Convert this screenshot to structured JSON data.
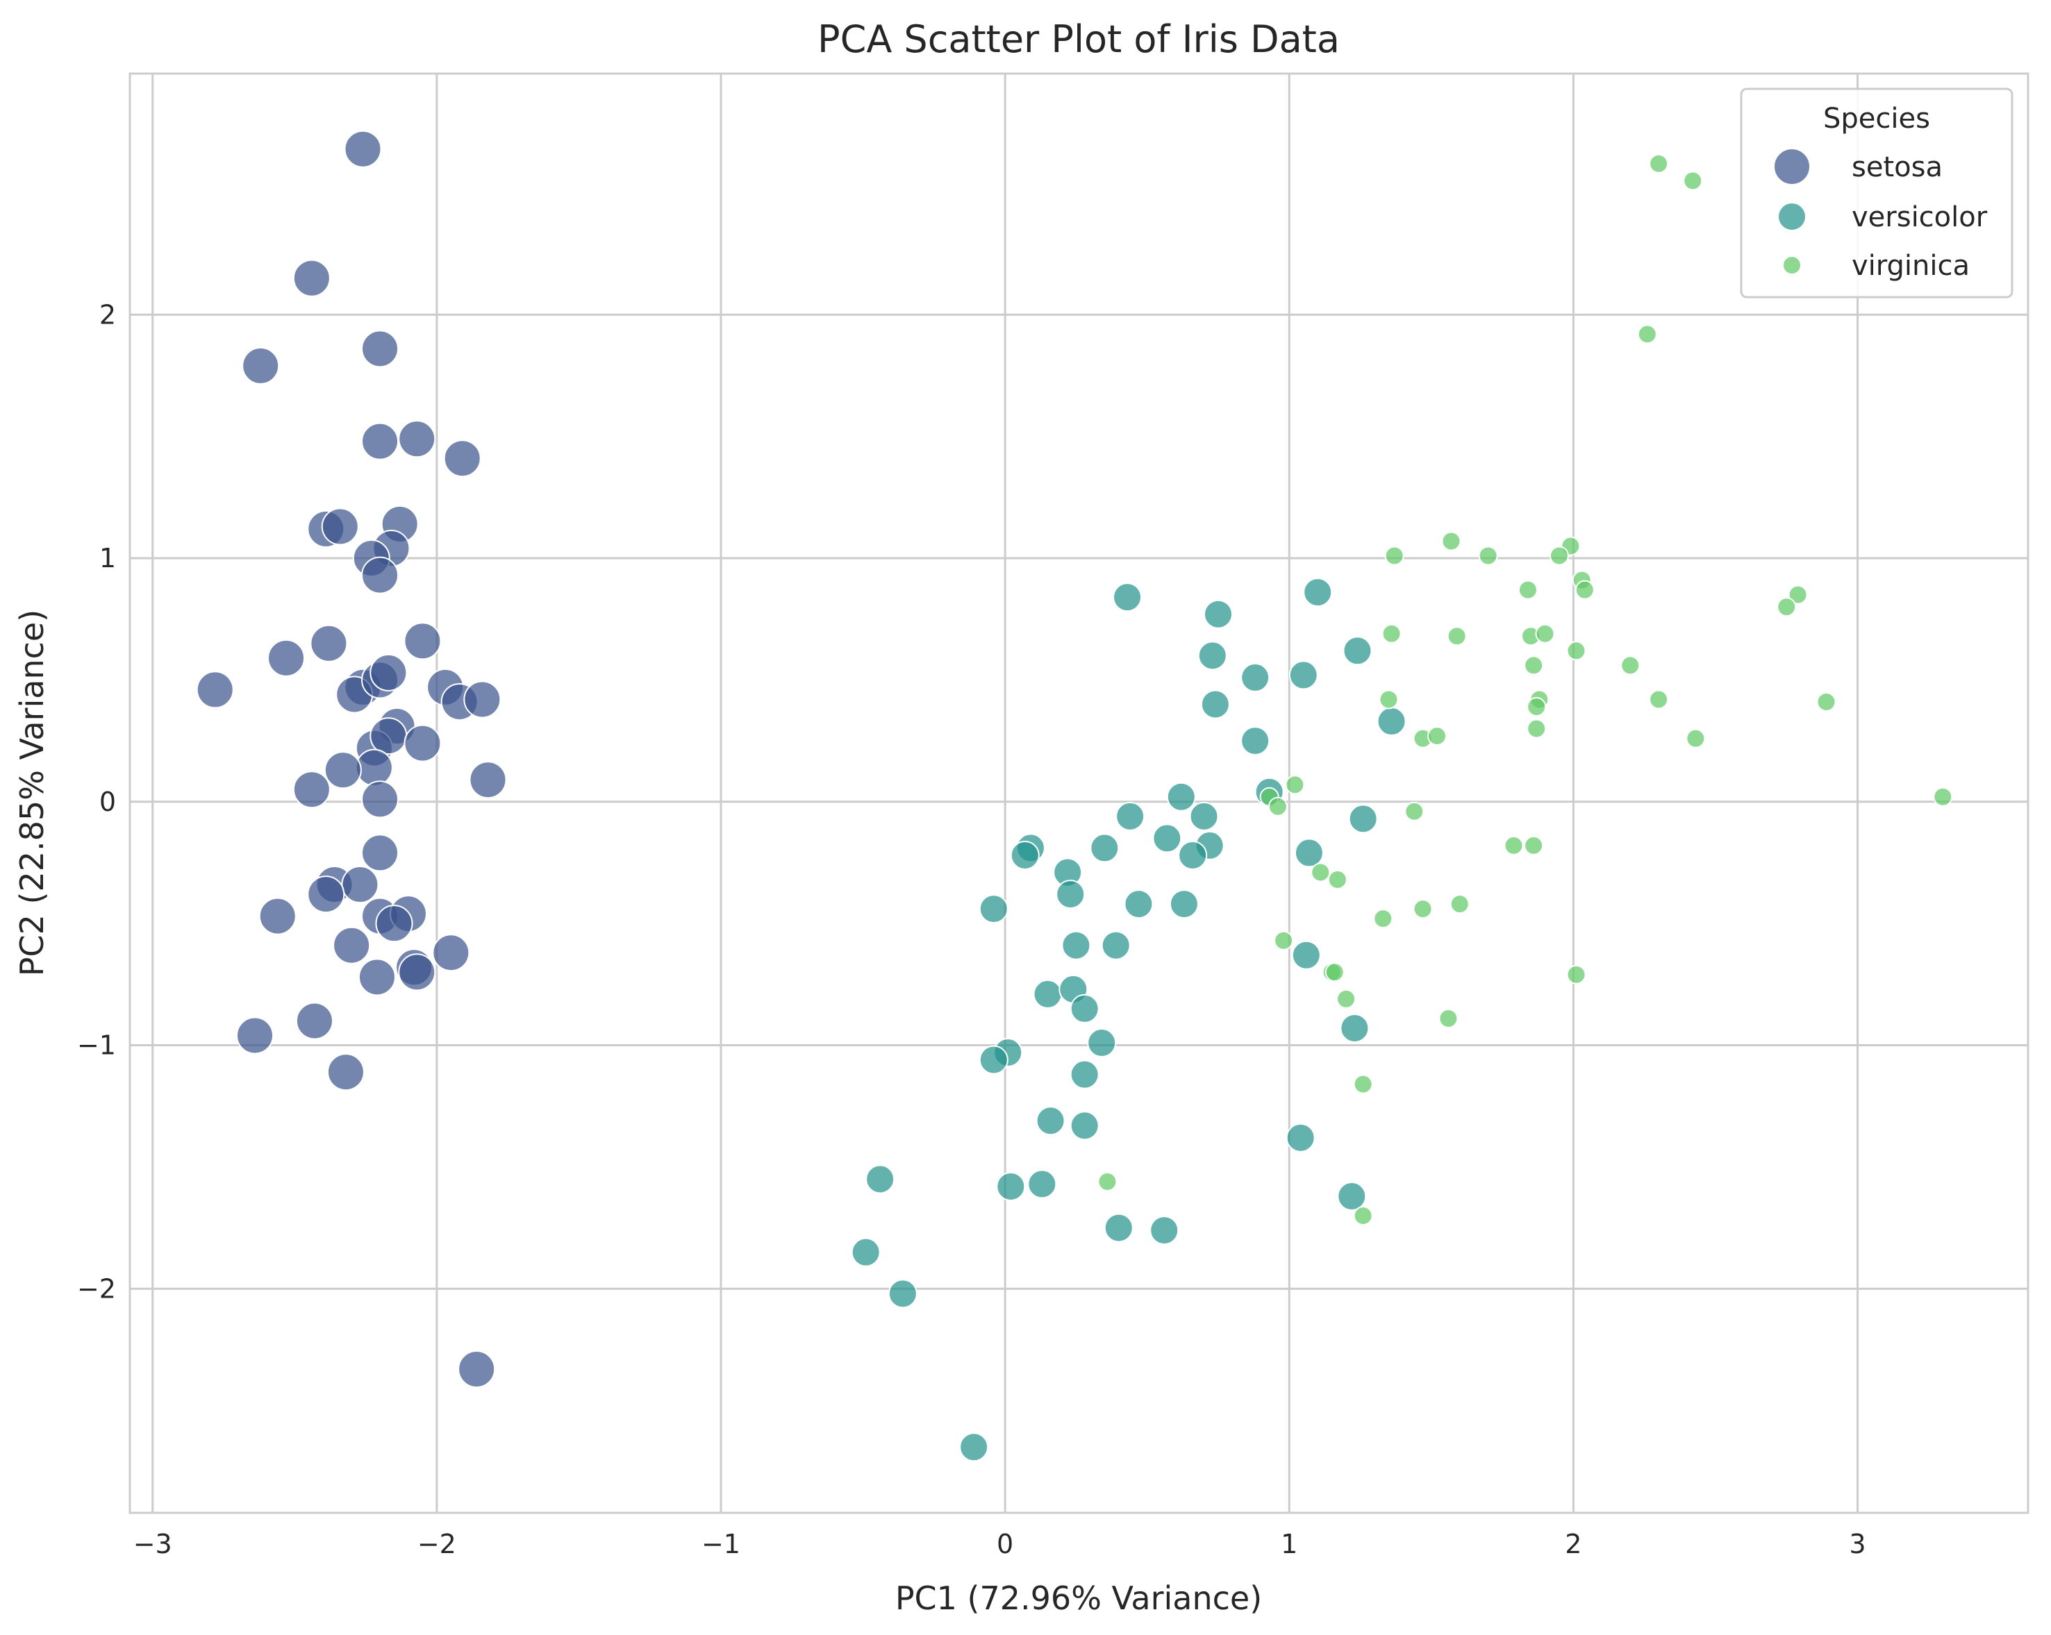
{
  "chart_data": {
    "type": "scatter",
    "title": "PCA Scatter Plot of Iris Data",
    "xlabel": "PC1 (72.96% Variance)",
    "ylabel": "PC2 (22.85% Variance)",
    "xlim": [
      -3.08,
      3.6
    ],
    "ylim": [
      -2.92,
      2.99
    ],
    "xticks": [
      -3,
      -2,
      -1,
      0,
      1,
      2,
      3
    ],
    "yticks": [
      -2,
      -1,
      0,
      1,
      2
    ],
    "xtick_labels": [
      "−3",
      "−2",
      "−1",
      "0",
      "1",
      "2",
      "3"
    ],
    "ytick_labels": [
      "−2",
      "−1",
      "0",
      "1",
      "2"
    ],
    "grid": true,
    "legend": {
      "title": "Species",
      "position": "top-right"
    },
    "series": [
      {
        "name": "setosa",
        "color": "#3b528b",
        "marker_size": "large",
        "points": [
          [
            -2.26,
            2.68
          ],
          [
            -2.44,
            2.15
          ],
          [
            -2.62,
            1.79
          ],
          [
            -2.2,
            1.86
          ],
          [
            -2.2,
            1.48
          ],
          [
            -2.07,
            1.49
          ],
          [
            -1.91,
            1.41
          ],
          [
            -2.39,
            1.12
          ],
          [
            -2.34,
            1.13
          ],
          [
            -2.13,
            1.14
          ],
          [
            -2.16,
            1.04
          ],
          [
            -2.23,
            1.0
          ],
          [
            -2.2,
            0.93
          ],
          [
            -2.38,
            0.65
          ],
          [
            -2.53,
            0.59
          ],
          [
            -2.05,
            0.66
          ],
          [
            -2.78,
            0.46
          ],
          [
            -2.26,
            0.47
          ],
          [
            -2.29,
            0.44
          ],
          [
            -2.2,
            0.5
          ],
          [
            -2.17,
            0.53
          ],
          [
            -1.97,
            0.47
          ],
          [
            -1.92,
            0.41
          ],
          [
            -1.84,
            0.42
          ],
          [
            -2.14,
            0.31
          ],
          [
            -2.22,
            0.22
          ],
          [
            -2.17,
            0.27
          ],
          [
            -2.22,
            0.14
          ],
          [
            -2.05,
            0.24
          ],
          [
            -2.33,
            0.13
          ],
          [
            -1.82,
            0.09
          ],
          [
            -2.44,
            0.05
          ],
          [
            -2.2,
            0.01
          ],
          [
            -2.2,
            -0.21
          ],
          [
            -2.36,
            -0.34
          ],
          [
            -2.27,
            -0.34
          ],
          [
            -2.39,
            -0.38
          ],
          [
            -2.56,
            -0.47
          ],
          [
            -2.2,
            -0.47
          ],
          [
            -2.1,
            -0.46
          ],
          [
            -2.15,
            -0.5
          ],
          [
            -2.3,
            -0.59
          ],
          [
            -1.95,
            -0.62
          ],
          [
            -2.08,
            -0.68
          ],
          [
            -2.21,
            -0.72
          ],
          [
            -2.07,
            -0.7
          ],
          [
            -2.43,
            -0.9
          ],
          [
            -2.64,
            -0.96
          ],
          [
            -2.32,
            -1.11
          ],
          [
            -1.86,
            -2.33
          ]
        ]
      },
      {
        "name": "versicolor",
        "color": "#21918c",
        "marker_size": "medium",
        "points": [
          [
            0.43,
            0.84
          ],
          [
            1.1,
            0.86
          ],
          [
            0.75,
            0.77
          ],
          [
            0.73,
            0.6
          ],
          [
            1.24,
            0.62
          ],
          [
            0.88,
            0.51
          ],
          [
            1.05,
            0.52
          ],
          [
            0.74,
            0.4
          ],
          [
            1.36,
            0.33
          ],
          [
            0.88,
            0.25
          ],
          [
            0.93,
            0.04
          ],
          [
            0.62,
            0.02
          ],
          [
            0.44,
            -0.06
          ],
          [
            0.7,
            -0.06
          ],
          [
            1.26,
            -0.07
          ],
          [
            0.57,
            -0.15
          ],
          [
            0.72,
            -0.18
          ],
          [
            0.35,
            -0.19
          ],
          [
            0.09,
            -0.19
          ],
          [
            0.07,
            -0.22
          ],
          [
            0.66,
            -0.22
          ],
          [
            1.07,
            -0.21
          ],
          [
            0.22,
            -0.29
          ],
          [
            0.23,
            -0.38
          ],
          [
            -0.04,
            -0.44
          ],
          [
            0.47,
            -0.42
          ],
          [
            0.63,
            -0.42
          ],
          [
            0.25,
            -0.59
          ],
          [
            0.39,
            -0.59
          ],
          [
            1.06,
            -0.63
          ],
          [
            0.15,
            -0.79
          ],
          [
            0.24,
            -0.77
          ],
          [
            0.28,
            -0.85
          ],
          [
            1.23,
            -0.93
          ],
          [
            0.34,
            -0.99
          ],
          [
            0.01,
            -1.03
          ],
          [
            -0.04,
            -1.06
          ],
          [
            0.28,
            -1.12
          ],
          [
            0.16,
            -1.31
          ],
          [
            0.28,
            -1.33
          ],
          [
            1.04,
            -1.38
          ],
          [
            0.02,
            -1.58
          ],
          [
            0.13,
            -1.57
          ],
          [
            -0.44,
            -1.55
          ],
          [
            1.22,
            -1.62
          ],
          [
            0.4,
            -1.75
          ],
          [
            0.56,
            -1.76
          ],
          [
            -0.49,
            -1.85
          ],
          [
            -0.36,
            -2.02
          ],
          [
            -0.11,
            -2.65
          ]
        ]
      },
      {
        "name": "virginica",
        "color": "#5ec962",
        "marker_size": "small",
        "points": [
          [
            2.3,
            2.62
          ],
          [
            2.42,
            2.55
          ],
          [
            2.26,
            1.92
          ],
          [
            1.57,
            1.07
          ],
          [
            1.37,
            1.01
          ],
          [
            1.7,
            1.01
          ],
          [
            1.99,
            1.05
          ],
          [
            1.95,
            1.01
          ],
          [
            2.03,
            0.91
          ],
          [
            2.04,
            0.87
          ],
          [
            1.84,
            0.87
          ],
          [
            2.79,
            0.85
          ],
          [
            2.75,
            0.8
          ],
          [
            1.36,
            0.69
          ],
          [
            1.85,
            0.68
          ],
          [
            1.9,
            0.69
          ],
          [
            1.59,
            0.68
          ],
          [
            2.01,
            0.62
          ],
          [
            1.86,
            0.56
          ],
          [
            2.2,
            0.56
          ],
          [
            1.35,
            0.42
          ],
          [
            1.88,
            0.42
          ],
          [
            1.87,
            0.39
          ],
          [
            2.3,
            0.42
          ],
          [
            2.89,
            0.41
          ],
          [
            1.87,
            0.3
          ],
          [
            1.47,
            0.26
          ],
          [
            1.52,
            0.27
          ],
          [
            2.43,
            0.26
          ],
          [
            1.02,
            0.07
          ],
          [
            0.93,
            0.02
          ],
          [
            0.96,
            -0.02
          ],
          [
            3.3,
            0.02
          ],
          [
            1.44,
            -0.04
          ],
          [
            1.79,
            -0.18
          ],
          [
            1.86,
            -0.18
          ],
          [
            1.11,
            -0.29
          ],
          [
            1.17,
            -0.32
          ],
          [
            1.33,
            -0.48
          ],
          [
            1.47,
            -0.44
          ],
          [
            1.6,
            -0.42
          ],
          [
            0.98,
            -0.57
          ],
          [
            1.15,
            -0.7
          ],
          [
            1.16,
            -0.7
          ],
          [
            2.01,
            -0.71
          ],
          [
            1.2,
            -0.81
          ],
          [
            1.56,
            -0.89
          ],
          [
            1.26,
            -1.16
          ],
          [
            0.36,
            -1.56
          ],
          [
            1.26,
            -1.7
          ]
        ]
      }
    ]
  }
}
